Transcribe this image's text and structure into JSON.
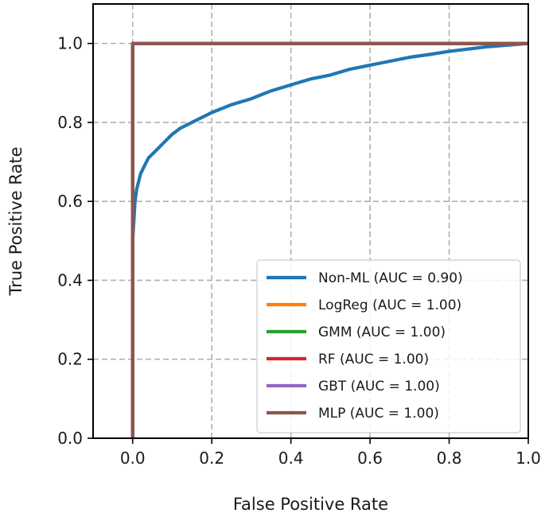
{
  "chart_data": {
    "type": "line",
    "xlabel": "False Positive Rate",
    "ylabel": "True Positive Rate",
    "xlim": [
      -0.1,
      1.0
    ],
    "ylim": [
      0.0,
      1.1
    ],
    "x_ticks": [
      "0.0",
      "0.2",
      "0.4",
      "0.6",
      "0.8",
      "1.0"
    ],
    "y_ticks": [
      "0.0",
      "0.2",
      "0.4",
      "0.6",
      "0.8",
      "1.0"
    ],
    "grid": true,
    "grid_style": "dashed",
    "legend_position": "lower-right",
    "series": [
      {
        "name": "Non-ML (AUC = 0.90)",
        "color": "#1f77b4",
        "x": [
          0.0,
          0.0,
          0.003,
          0.006,
          0.01,
          0.015,
          0.02,
          0.03,
          0.04,
          0.05,
          0.06,
          0.08,
          0.1,
          0.12,
          0.15,
          0.2,
          0.25,
          0.3,
          0.35,
          0.4,
          0.45,
          0.5,
          0.55,
          0.6,
          0.65,
          0.7,
          0.75,
          0.8,
          0.85,
          0.9,
          0.95,
          1.0
        ],
        "y": [
          0.0,
          0.5,
          0.55,
          0.6,
          0.63,
          0.65,
          0.67,
          0.69,
          0.71,
          0.72,
          0.73,
          0.75,
          0.77,
          0.785,
          0.8,
          0.825,
          0.845,
          0.86,
          0.88,
          0.895,
          0.91,
          0.92,
          0.935,
          0.945,
          0.955,
          0.965,
          0.972,
          0.98,
          0.986,
          0.992,
          0.996,
          1.0
        ]
      },
      {
        "name": "LogReg (AUC = 1.00)",
        "color": "#ff7f0e",
        "x": [
          0.0,
          0.0,
          1.0
        ],
        "y": [
          0.0,
          1.0,
          1.0
        ]
      },
      {
        "name": "GMM (AUC = 1.00)",
        "color": "#2ca02c",
        "x": [
          0.0,
          0.0,
          1.0
        ],
        "y": [
          0.0,
          1.0,
          1.0
        ]
      },
      {
        "name": "RF (AUC = 1.00)",
        "color": "#d62728",
        "x": [
          0.0,
          0.0,
          1.0
        ],
        "y": [
          0.0,
          1.0,
          1.0
        ]
      },
      {
        "name": "GBT (AUC = 1.00)",
        "color": "#9467bd",
        "x": [
          0.0,
          0.0,
          1.0
        ],
        "y": [
          0.0,
          1.0,
          1.0
        ]
      },
      {
        "name": "MLP (AUC = 1.00)",
        "color": "#8c564b",
        "x": [
          0.0,
          0.0,
          1.0
        ],
        "y": [
          0.0,
          1.0,
          1.0
        ]
      }
    ]
  }
}
